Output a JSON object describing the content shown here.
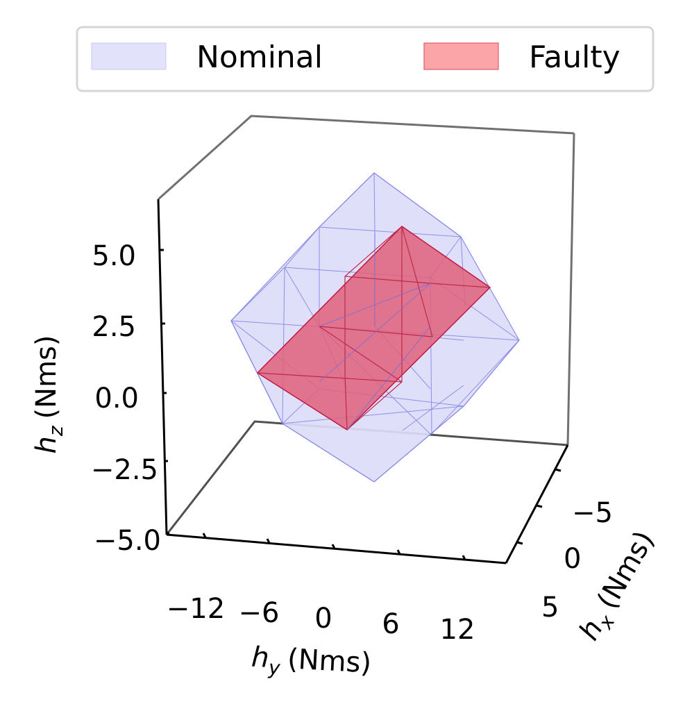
{
  "chart_data": {
    "type": "3d-polyhedron",
    "title": "",
    "legend": {
      "placement": "top",
      "entries": [
        {
          "name": "Nominal",
          "color": "#e0e0fa"
        },
        {
          "name": "Faulty",
          "color": "#fba5a8"
        }
      ]
    },
    "axes": {
      "z": {
        "label_base": "h",
        "label_sub": "z",
        "label_unit": "(Nms)",
        "ticks": [
          "5.0",
          "2.5",
          "0.0",
          "−2.5",
          "−5.0"
        ],
        "range": [
          -5.0,
          6.5
        ]
      },
      "y": {
        "label_base": "h",
        "label_sub": "y",
        "label_unit": "(Nms)",
        "ticks": [
          "−12",
          "−6",
          "0",
          "6",
          "12"
        ],
        "range": [
          -15,
          15
        ]
      },
      "x": {
        "label_base": "h",
        "label_sub": "x",
        "label_unit": "(Nms)",
        "ticks": [
          "−5",
          "0",
          "5"
        ],
        "range": [
          -8,
          8
        ]
      }
    },
    "series": [
      {
        "name": "Nominal",
        "shape": "rhombic polyhedron",
        "fill": "#dcdcfa",
        "edge": "#7878e0"
      },
      {
        "name": "Faulty",
        "shape": "parallelepiped",
        "fill": "#e0607a",
        "edge": "#c01840"
      }
    ]
  }
}
